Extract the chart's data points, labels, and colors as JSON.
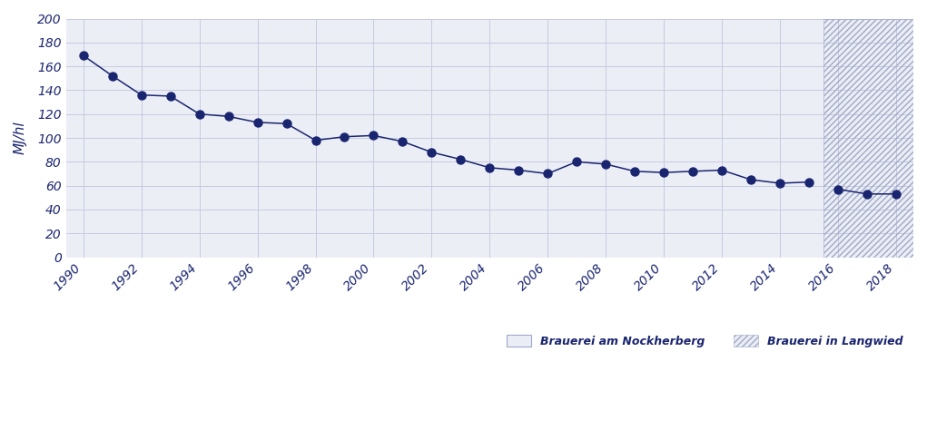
{
  "years_main": [
    1990,
    1991,
    1992,
    1993,
    1994,
    1995,
    1996,
    1997,
    1998,
    1999,
    2000,
    2001,
    2002,
    2003,
    2004,
    2005,
    2006,
    2007,
    2008,
    2009,
    2010,
    2011,
    2012,
    2013,
    2014,
    2015
  ],
  "values_main": [
    169,
    152,
    136,
    135,
    120,
    118,
    113,
    112,
    98,
    101,
    102,
    97,
    88,
    82,
    75,
    73,
    70,
    80,
    78,
    72,
    71,
    72,
    73,
    65,
    62,
    63
  ],
  "years_langwied": [
    2016,
    2017,
    2018
  ],
  "values_langwied": [
    57,
    53,
    53
  ],
  "line_color": "#1a2570",
  "marker_color": "#1a2570",
  "bg_color_main": "#eceef5",
  "bg_color_langwied": "#eceef5",
  "ylabel": "MJ/hl",
  "ylim": [
    0,
    200
  ],
  "yticks": [
    0,
    20,
    40,
    60,
    80,
    100,
    120,
    140,
    160,
    180,
    200
  ],
  "xlim": [
    1989.4,
    2018.6
  ],
  "xticks": [
    1990,
    1992,
    1994,
    1996,
    1998,
    2000,
    2002,
    2004,
    2006,
    2008,
    2010,
    2012,
    2014,
    2016,
    2018
  ],
  "grid_color": "#c5cae0",
  "langwied_start": 2015.5,
  "legend_label1": "Brauerei am Nockherberg",
  "legend_label2": "Brauerei in Langwied",
  "axis_label_color": "#1a2570",
  "tick_label_color": "#1a2570"
}
